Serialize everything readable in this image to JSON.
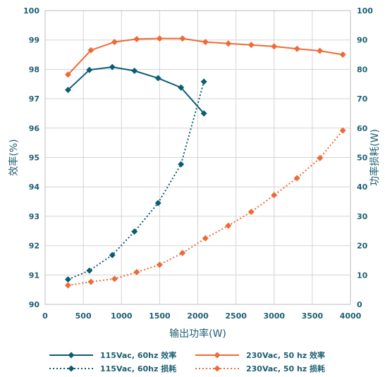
{
  "chart_data": {
    "type": "line",
    "xlabel": "输出功率(W)",
    "ylabel_left": "效率(%)",
    "ylabel_right": "功率损耗(W)",
    "xlim": [
      0,
      4000
    ],
    "ylim_left": [
      90,
      100
    ],
    "ylim_right": [
      0,
      100
    ],
    "xticks": [
      "0",
      "500",
      "1000",
      "1500",
      "2000",
      "2500",
      "3000",
      "3500",
      "4000"
    ],
    "yticks_left": [
      "90",
      "91",
      "92",
      "93",
      "94",
      "95",
      "96",
      "97",
      "98",
      "99",
      "100"
    ],
    "yticks_right": [
      "0",
      "10",
      "20",
      "30",
      "40",
      "50",
      "60",
      "70",
      "80",
      "90",
      "100"
    ],
    "grid": true,
    "legend_position": "bottom",
    "colors": {
      "teal": "#0b5d72",
      "orange": "#f06a35",
      "grid": "#d4d4d4"
    },
    "series": [
      {
        "name": "115Vac, 60hz 效率",
        "axis": "left",
        "color": "#0b5d72",
        "line": "solid",
        "marker": "diamond",
        "x": [
          300,
          580,
          880,
          1170,
          1480,
          1780,
          2080
        ],
        "y": [
          97.3,
          97.98,
          98.08,
          97.95,
          97.7,
          97.38,
          96.5
        ]
      },
      {
        "name": "115Vac, 60hz 损耗",
        "axis": "right",
        "color": "#0b5d72",
        "line": "dotted",
        "marker": "diamond",
        "x": [
          300,
          580,
          880,
          1170,
          1480,
          1780,
          2080
        ],
        "y": [
          8.5,
          11.5,
          16.8,
          24.8,
          34.5,
          47.7,
          75.8
        ]
      },
      {
        "name": "230Vac, 50 hz 效率",
        "axis": "left",
        "color": "#f06a35",
        "line": "solid",
        "marker": "diamond",
        "x": [
          300,
          600,
          910,
          1200,
          1500,
          1800,
          2100,
          2400,
          2700,
          3000,
          3300,
          3600,
          3900
        ],
        "y": [
          97.82,
          98.65,
          98.93,
          99.03,
          99.05,
          99.05,
          98.93,
          98.88,
          98.83,
          98.78,
          98.7,
          98.63,
          98.5
        ]
      },
      {
        "name": "230Vac, 50 hz 损耗",
        "axis": "right",
        "color": "#f06a35",
        "line": "dotted",
        "marker": "diamond",
        "x": [
          300,
          600,
          910,
          1200,
          1500,
          1800,
          2100,
          2400,
          2700,
          3000,
          3300,
          3600,
          3900
        ],
        "y": [
          6.5,
          7.7,
          8.7,
          11.0,
          13.5,
          17.5,
          22.5,
          26.8,
          31.5,
          37.2,
          43.0,
          49.8,
          59.2
        ]
      }
    ]
  }
}
